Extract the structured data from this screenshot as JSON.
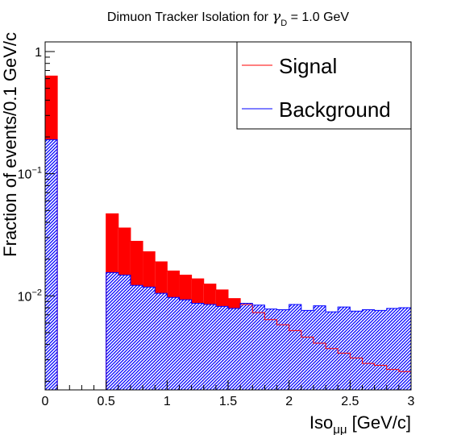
{
  "chart_data": {
    "type": "bar",
    "title_main": "Dimuon Tracker Isolation for ",
    "title_symbol": "γ",
    "title_sub": "D",
    "title_tail": " = 1.0 GeV",
    "xlabel_main": "Iso",
    "xlabel_sub": "μμ",
    "xlabel_tail": " [GeV/c]",
    "ylabel": "Fraction of events/0.1 GeV/c",
    "xlim": [
      0,
      3
    ],
    "ylim": [
      0.0017,
      1.2
    ],
    "ylog": true,
    "x_ticks": [
      {
        "value": 0,
        "label": "0"
      },
      {
        "value": 0.5,
        "label": "0.5"
      },
      {
        "value": 1,
        "label": "1"
      },
      {
        "value": 1.5,
        "label": "1.5"
      },
      {
        "value": 2,
        "label": "2"
      },
      {
        "value": 2.5,
        "label": "2.5"
      },
      {
        "value": 3,
        "label": "3"
      }
    ],
    "y_ticks": [
      {
        "value": 1,
        "base": "1",
        "exp": ""
      },
      {
        "value": 0.1,
        "base": "10",
        "exp": "−1"
      },
      {
        "value": 0.01,
        "base": "10",
        "exp": "−2"
      }
    ],
    "bin_width": 0.1,
    "x_bin_low_edges": [
      0.0,
      0.5,
      0.6,
      0.7,
      0.8,
      0.9,
      1.0,
      1.1,
      1.2,
      1.3,
      1.4,
      1.5,
      1.6,
      1.7,
      1.8,
      1.9,
      2.0,
      2.1,
      2.2,
      2.3,
      2.4,
      2.5,
      2.6,
      2.7,
      2.8,
      2.9
    ],
    "series": [
      {
        "name": "Signal",
        "color": "#ff0000",
        "fill": "solid",
        "values": [
          0.63,
          0.047,
          0.036,
          0.028,
          0.023,
          0.019,
          0.016,
          0.0148,
          0.0138,
          0.0125,
          0.0112,
          0.0095,
          0.0085,
          0.0073,
          0.0064,
          0.0058,
          0.0052,
          0.0046,
          0.0041,
          0.0037,
          0.0034,
          0.0031,
          0.0028,
          0.0027,
          0.0025,
          0.0024
        ]
      },
      {
        "name": "Background",
        "color": "#0000ff",
        "fill": "hatched",
        "values": [
          0.19,
          0.0155,
          0.0148,
          0.0122,
          0.0118,
          0.0105,
          0.0097,
          0.0093,
          0.0087,
          0.0085,
          0.0082,
          0.0079,
          0.0087,
          0.0084,
          0.0078,
          0.0077,
          0.0085,
          0.0076,
          0.0083,
          0.0074,
          0.0081,
          0.0075,
          0.0077,
          0.0076,
          0.0079,
          0.008
        ]
      }
    ],
    "legend_position": "top-right",
    "grid": false
  }
}
